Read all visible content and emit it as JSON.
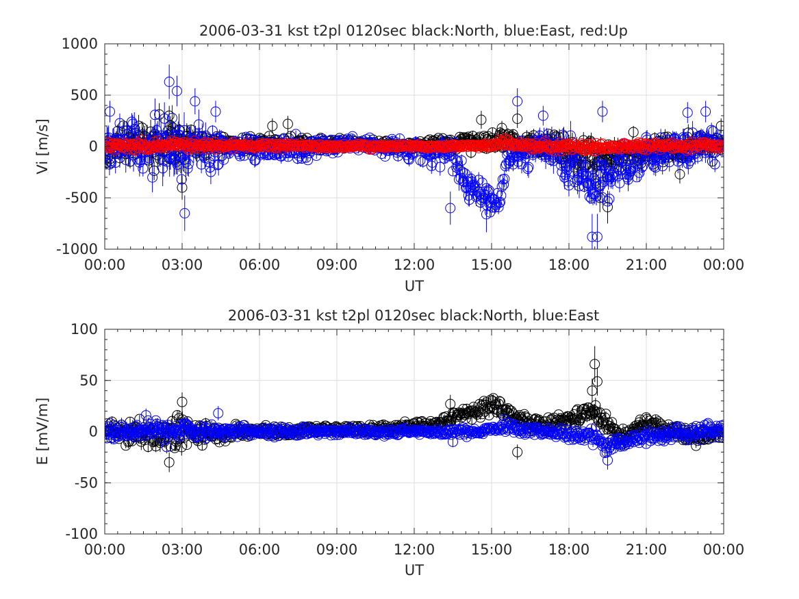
{
  "chart_data": [
    {
      "type": "scatter",
      "title": "2006-03-31 kst t2pl 0120sec black:North, blue:East, red:Up",
      "xlabel": "UT",
      "ylabel": "Vi [m/s]",
      "xlim": [
        0,
        24
      ],
      "ylim": [
        -1000,
        1000
      ],
      "x_ticks": [
        "00:00",
        "03:00",
        "06:00",
        "09:00",
        "12:00",
        "15:00",
        "18:00",
        "21:00",
        "00:00"
      ],
      "y_ticks": [
        "1000",
        "500",
        "0",
        "-500",
        "-1000"
      ],
      "grid": true,
      "marker": "circle",
      "error_bars": true,
      "sample_interval_hours": 0.0333,
      "series": [
        {
          "name": "North",
          "color": "#000000",
          "profile_hours": [
            0,
            1,
            2,
            2.5,
            3,
            3.5,
            4,
            5,
            6,
            7,
            8,
            9,
            10,
            11,
            12,
            13,
            14,
            14.5,
            15,
            15.5,
            16,
            17,
            18,
            18.5,
            19,
            19.5,
            20,
            21,
            22,
            23,
            24
          ],
          "profile_mean": [
            0,
            20,
            10,
            20,
            -30,
            30,
            10,
            20,
            30,
            30,
            20,
            30,
            20,
            10,
            10,
            20,
            40,
            50,
            60,
            80,
            20,
            10,
            -40,
            -80,
            -100,
            -120,
            -80,
            -50,
            -20,
            0,
            0
          ],
          "profile_spread": [
            120,
            140,
            180,
            200,
            200,
            150,
            90,
            70,
            60,
            60,
            50,
            40,
            40,
            40,
            40,
            50,
            70,
            80,
            70,
            80,
            90,
            100,
            130,
            160,
            170,
            150,
            120,
            110,
            110,
            130,
            80
          ],
          "outliers": [
            [
              0.5,
              150
            ],
            [
              2.5,
              300
            ],
            [
              3.0,
              -400
            ],
            [
              6.5,
              200
            ],
            [
              7.1,
              220
            ],
            [
              14.6,
              260
            ],
            [
              15.4,
              180
            ],
            [
              16.0,
              270
            ],
            [
              19.2,
              -500
            ],
            [
              19.5,
              -590
            ],
            [
              20.5,
              140
            ],
            [
              22.3,
              -270
            ],
            [
              23.9,
              200
            ]
          ]
        },
        {
          "name": "East",
          "color": "#0000ff",
          "profile_hours": [
            0,
            0.5,
            1,
            1.5,
            2,
            2.5,
            3,
            3.5,
            4,
            4.5,
            5,
            6,
            7,
            8,
            9,
            10,
            11,
            12,
            13,
            13.5,
            14,
            14.3,
            14.7,
            15,
            15.3,
            15.6,
            16,
            16.5,
            17,
            17.5,
            18,
            18.5,
            19,
            19.5,
            20,
            20.5,
            21,
            22,
            23,
            24
          ],
          "profile_mean": [
            0,
            0,
            20,
            -40,
            0,
            50,
            -100,
            60,
            -40,
            0,
            -30,
            -20,
            -20,
            -20,
            0,
            20,
            0,
            -40,
            -60,
            -80,
            -350,
            -480,
            -520,
            -560,
            -520,
            -150,
            -80,
            -40,
            0,
            -60,
            -160,
            -250,
            -320,
            -300,
            -180,
            -120,
            -60,
            -20,
            20,
            0
          ],
          "profile_spread": [
            150,
            190,
            200,
            220,
            230,
            240,
            260,
            220,
            170,
            130,
            110,
            90,
            90,
            90,
            70,
            60,
            70,
            90,
            110,
            120,
            160,
            140,
            120,
            110,
            110,
            110,
            120,
            140,
            160,
            170,
            180,
            180,
            190,
            170,
            150,
            140,
            140,
            140,
            180,
            120
          ],
          "outliers": [
            [
              0.2,
              340
            ],
            [
              2.5,
              630
            ],
            [
              2.8,
              540
            ],
            [
              3.1,
              -650
            ],
            [
              3.5,
              440
            ],
            [
              4.3,
              340
            ],
            [
              13.4,
              -600
            ],
            [
              14.8,
              -660
            ],
            [
              16.0,
              440
            ],
            [
              17.0,
              300
            ],
            [
              18.9,
              -880
            ],
            [
              19.1,
              -880
            ],
            [
              19.3,
              340
            ],
            [
              22.6,
              330
            ],
            [
              23.3,
              340
            ]
          ]
        },
        {
          "name": "Up",
          "color": "#ff0000",
          "profile_hours": [
            0,
            3,
            6,
            12,
            15,
            15.5,
            16,
            18,
            19,
            20,
            24
          ],
          "profile_mean": [
            10,
            10,
            10,
            0,
            10,
            40,
            10,
            0,
            -10,
            0,
            10
          ],
          "profile_spread": [
            35,
            40,
            25,
            18,
            22,
            35,
            30,
            35,
            40,
            30,
            30
          ],
          "outliers": []
        }
      ]
    },
    {
      "type": "scatter",
      "title": "2006-03-31 kst t2pl 0120sec black:North, blue:East",
      "xlabel": "UT",
      "ylabel": "E [mV/m]",
      "xlim": [
        0,
        24
      ],
      "ylim": [
        -100,
        100
      ],
      "x_ticks": [
        "00:00",
        "03:00",
        "06:00",
        "09:00",
        "12:00",
        "15:00",
        "18:00",
        "21:00",
        "00:00"
      ],
      "y_ticks": [
        "100",
        "50",
        "0",
        "-50",
        "-100"
      ],
      "grid": true,
      "marker": "circle",
      "error_bars": true,
      "sample_interval_hours": 0.0333,
      "series": [
        {
          "name": "North",
          "color": "#000000",
          "profile_hours": [
            0,
            0.5,
            1,
            2,
            2.5,
            3,
            3.5,
            4,
            5,
            6,
            7,
            8,
            9,
            10,
            11,
            12,
            13,
            14,
            14.5,
            15,
            15.5,
            16,
            17,
            18,
            18.5,
            19,
            19.5,
            20,
            21,
            22,
            23,
            24
          ],
          "profile_mean": [
            0,
            0,
            -2,
            -3,
            -4,
            2,
            -2,
            -2,
            -1,
            0,
            0,
            2,
            3,
            2,
            3,
            6,
            8,
            18,
            22,
            25,
            22,
            12,
            6,
            12,
            18,
            20,
            5,
            -5,
            8,
            0,
            -5,
            0
          ],
          "profile_spread": [
            7,
            9,
            10,
            11,
            12,
            12,
            10,
            8,
            6,
            5,
            5,
            4,
            4,
            4,
            4,
            4,
            4,
            6,
            7,
            7,
            8,
            6,
            6,
            7,
            8,
            10,
            8,
            6,
            6,
            6,
            7,
            6
          ],
          "outliers": [
            [
              2.5,
              -30
            ],
            [
              3.0,
              29
            ],
            [
              13.4,
              27
            ],
            [
              16.0,
              -20
            ],
            [
              18.9,
              40
            ],
            [
              19.0,
              66
            ],
            [
              19.1,
              49
            ]
          ]
        },
        {
          "name": "East",
          "color": "#0000ff",
          "profile_hours": [
            0,
            1,
            2,
            3,
            4,
            5,
            6,
            9,
            12,
            13,
            14,
            15,
            15.5,
            16,
            17,
            18,
            19,
            19.5,
            20,
            21,
            22,
            23,
            24
          ],
          "profile_mean": [
            0,
            0,
            2,
            2,
            0,
            0,
            0,
            0,
            0,
            0,
            0,
            2,
            5,
            2,
            0,
            -2,
            -5,
            -15,
            -10,
            -5,
            -3,
            0,
            0
          ],
          "profile_spread": [
            6,
            6,
            7,
            7,
            6,
            5,
            4,
            3,
            3,
            3,
            4,
            4,
            5,
            4,
            4,
            5,
            6,
            6,
            6,
            5,
            5,
            6,
            5
          ],
          "outliers": [
            [
              1.6,
              16
            ],
            [
              2.4,
              -15
            ],
            [
              4.4,
              18
            ],
            [
              13.5,
              -10
            ],
            [
              19.5,
              -28
            ]
          ]
        }
      ]
    }
  ]
}
